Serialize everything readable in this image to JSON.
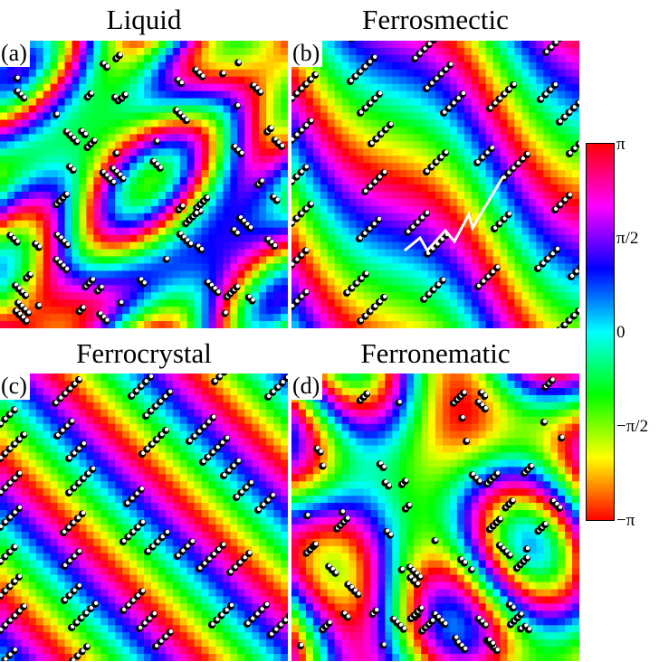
{
  "panels": [
    {
      "id": "a",
      "label": "(a)",
      "title": "Liquid",
      "pattern": "liquid"
    },
    {
      "id": "b",
      "label": "(b)",
      "title": "Ferrosmectic",
      "pattern": "smectic"
    },
    {
      "id": "c",
      "label": "(c)",
      "title": "Ferrocrystal",
      "pattern": "crystal"
    },
    {
      "id": "d",
      "label": "(d)",
      "title": "Ferronematic",
      "pattern": "nematic"
    }
  ],
  "colorbar": {
    "ticks": [
      "π",
      "π/2",
      "0",
      "−π/2",
      "−π"
    ],
    "colors": [
      "#ff0000",
      "#ff00ff",
      "#0000ff",
      "#00ffff",
      "#00ff00",
      "#ffff00",
      "#ff0000"
    ]
  }
}
